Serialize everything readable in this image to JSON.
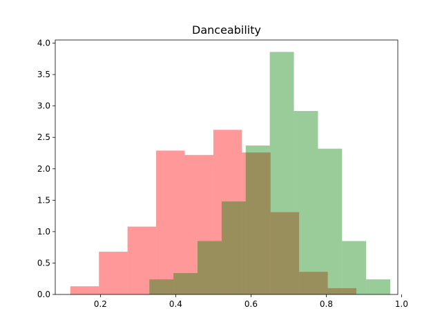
{
  "chart_data": {
    "type": "histogram",
    "title": "Danceability",
    "xlabel": "",
    "ylabel": "",
    "xlim": [
      0.08,
      0.99
    ],
    "ylim": [
      0,
      4.05
    ],
    "xticks": [
      0.2,
      0.4,
      0.6,
      0.8,
      1.0
    ],
    "xtick_labels": [
      "0.2",
      "0.4",
      "0.6",
      "0.8",
      "1.0"
    ],
    "yticks": [
      0.0,
      0.5,
      1.0,
      1.5,
      2.0,
      2.5,
      3.0,
      3.5,
      4.0
    ],
    "ytick_labels": [
      "0.0",
      "0.5",
      "1.0",
      "1.5",
      "2.0",
      "2.5",
      "3.0",
      "3.5",
      "4.0"
    ],
    "grid": false,
    "legend": "none",
    "series": [
      {
        "color": "#ff0000",
        "alpha": 0.4,
        "bin_edges": [
          0.12,
          0.196,
          0.272,
          0.348,
          0.424,
          0.5,
          0.576,
          0.652,
          0.728,
          0.804,
          0.88
        ],
        "values": [
          0.13,
          0.68,
          1.08,
          2.29,
          2.22,
          2.62,
          2.26,
          1.31,
          0.36,
          0.1
        ]
      },
      {
        "color": "#008000",
        "alpha": 0.4,
        "bin_edges": [
          0.33,
          0.394,
          0.458,
          0.522,
          0.586,
          0.65,
          0.714,
          0.778,
          0.842,
          0.906,
          0.97
        ],
        "values": [
          0.24,
          0.34,
          0.85,
          1.48,
          2.37,
          3.86,
          2.92,
          2.32,
          0.85,
          0.24
        ]
      }
    ]
  }
}
